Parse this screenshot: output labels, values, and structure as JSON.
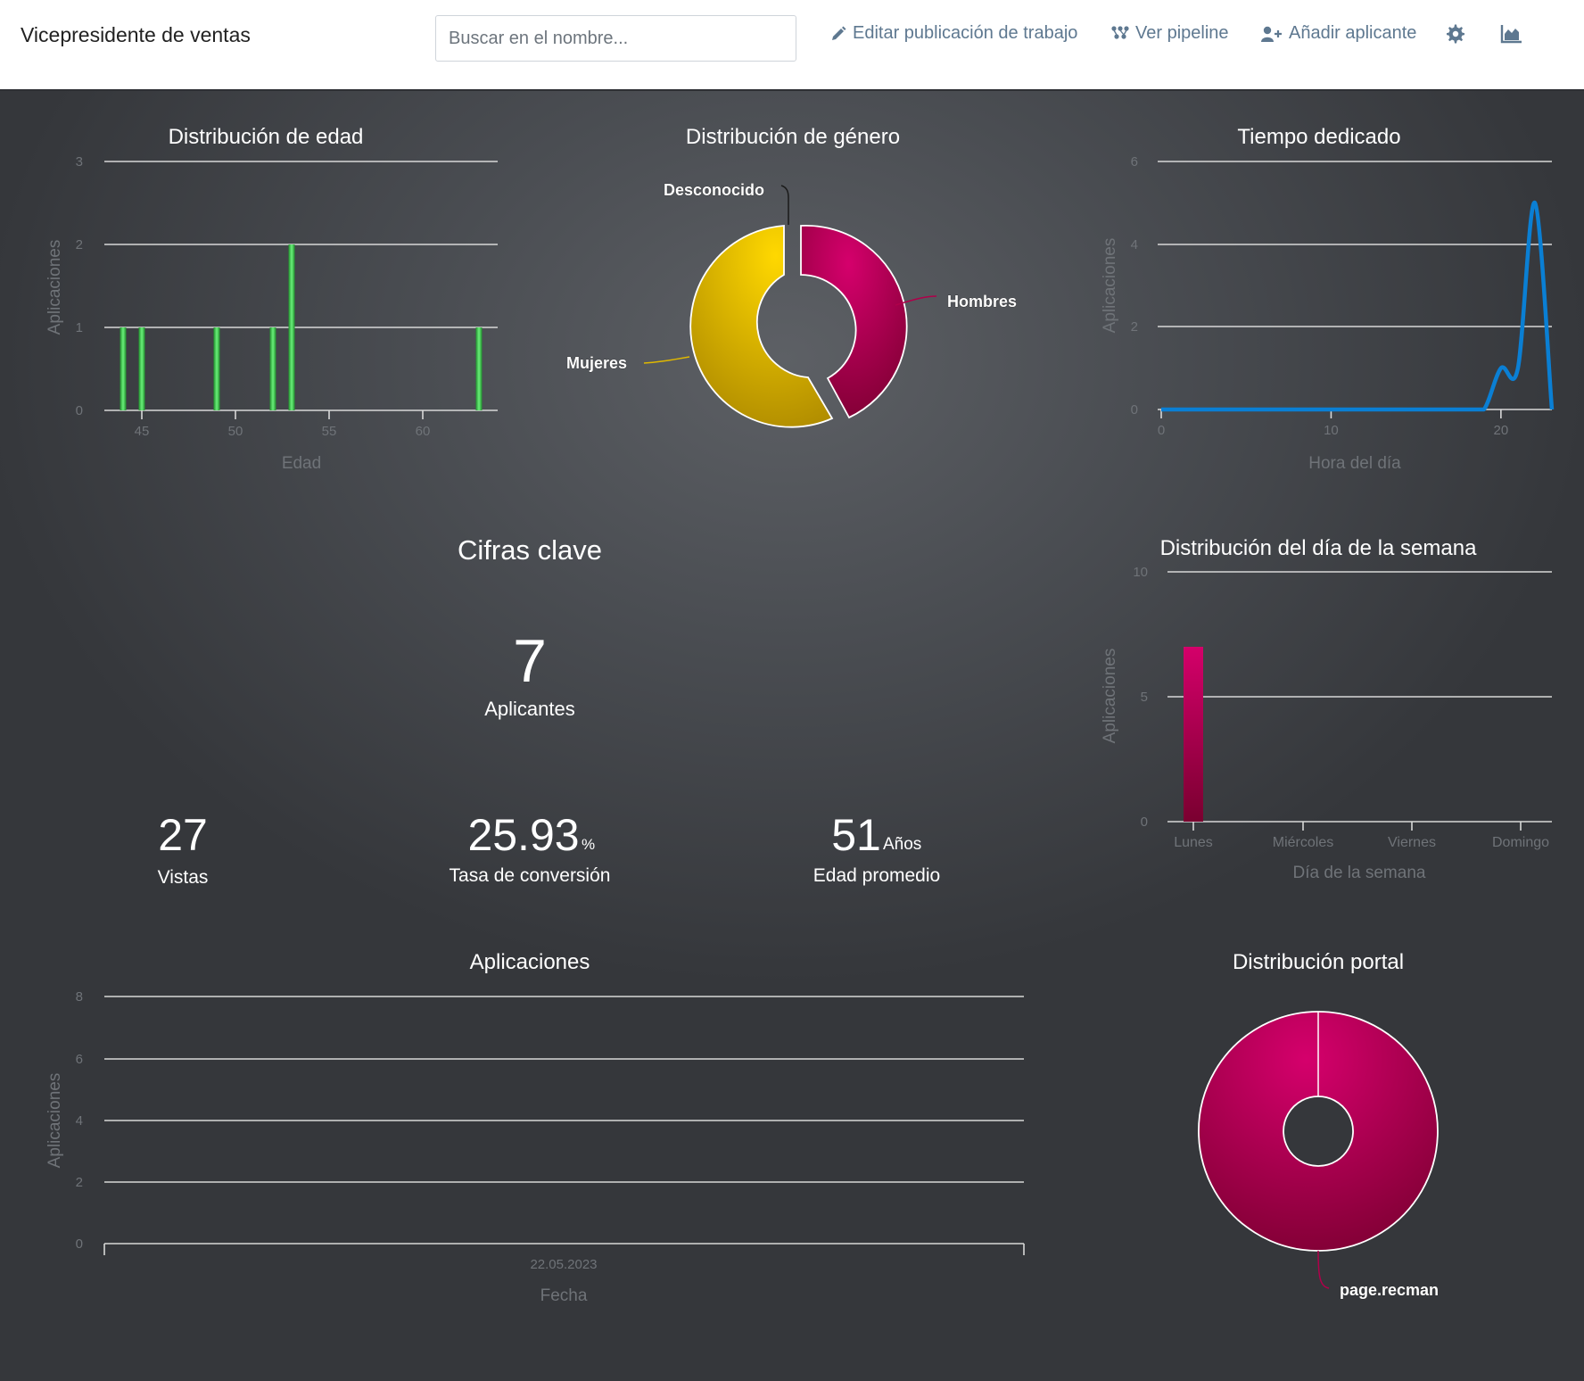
{
  "header": {
    "job_title": "Vicepresidente de ventas",
    "search_placeholder": "Buscar en el nombre...",
    "edit_label": "Editar publicación de trabajo",
    "pipeline_label": "Ver pipeline",
    "add_label": "Añadir aplicante"
  },
  "colors": {
    "green": "#2ecc40",
    "crimson": "#b0004a",
    "gold": "#e0b800",
    "blue": "#0a7fd4"
  },
  "age_chart": {
    "title": "Distribución de edad",
    "xlabel": "Edad",
    "ylabel": "Aplicaciones",
    "chart_data": {
      "type": "bar",
      "xlim": [
        43,
        64
      ],
      "ylim": [
        0,
        3
      ],
      "yticks": [
        "0",
        "1",
        "2",
        "3"
      ],
      "xticks": [
        "45",
        "50",
        "55",
        "60"
      ],
      "x": [
        44,
        45,
        49,
        52,
        53,
        63
      ],
      "values": [
        1,
        1,
        1,
        1,
        2,
        1
      ]
    }
  },
  "gender_chart": {
    "title": "Distribución de género",
    "chart_data": {
      "type": "pie",
      "labels": [
        "Hombres",
        "Mujeres",
        "Desconocido"
      ],
      "values": [
        43,
        57,
        0
      ]
    }
  },
  "time_chart": {
    "title": "Tiempo dedicado",
    "xlabel": "Hora del día",
    "ylabel": "Aplicaciones",
    "chart_data": {
      "type": "line",
      "xlim": [
        0,
        23
      ],
      "ylim": [
        0,
        6
      ],
      "yticks": [
        "0",
        "2",
        "4",
        "6"
      ],
      "xticks": [
        "0",
        "10",
        "20"
      ],
      "x": [
        0,
        1,
        2,
        3,
        4,
        5,
        6,
        7,
        8,
        9,
        10,
        11,
        12,
        13,
        14,
        15,
        16,
        17,
        18,
        19,
        20,
        21,
        22,
        23
      ],
      "values": [
        0,
        0,
        0,
        0,
        0,
        0,
        0,
        0,
        0,
        0,
        0,
        0,
        0,
        0,
        0,
        0,
        0,
        0,
        0,
        0,
        1,
        1,
        5,
        0
      ]
    }
  },
  "key_figures": {
    "title": "Cifras clave",
    "applicants_value": "7",
    "applicants_label": "Aplicantes",
    "views_value": "27",
    "views_label": "Vistas",
    "conversion_value": "25.93",
    "conversion_unit": "%",
    "conversion_label": "Tasa de conversión",
    "age_value": "51",
    "age_unit": "Años",
    "age_label": "Edad promedio"
  },
  "weekday_chart": {
    "title": "Distribución del día de la semana",
    "xlabel": "Día de la semana",
    "ylabel": "Aplicaciones",
    "chart_data": {
      "type": "bar",
      "ylim": [
        0,
        10
      ],
      "yticks": [
        "0",
        "5",
        "10"
      ],
      "categories": [
        "Lunes",
        "Miércoles",
        "Viernes",
        "Domingo"
      ],
      "values": [
        7,
        0,
        0,
        0
      ]
    }
  },
  "applications_chart": {
    "title": "Aplicaciones",
    "xlabel": "Fecha",
    "ylabel": "Aplicaciones",
    "chart_data": {
      "type": "line",
      "ylim": [
        0,
        8
      ],
      "yticks": [
        "0",
        "2",
        "4",
        "6",
        "8"
      ],
      "xticks": [
        "22.05.2023"
      ],
      "x": [],
      "values": []
    }
  },
  "portal_chart": {
    "title": "Distribución portal",
    "chart_data": {
      "type": "pie",
      "labels": [
        "page.recman"
      ],
      "values": [
        100
      ]
    }
  }
}
